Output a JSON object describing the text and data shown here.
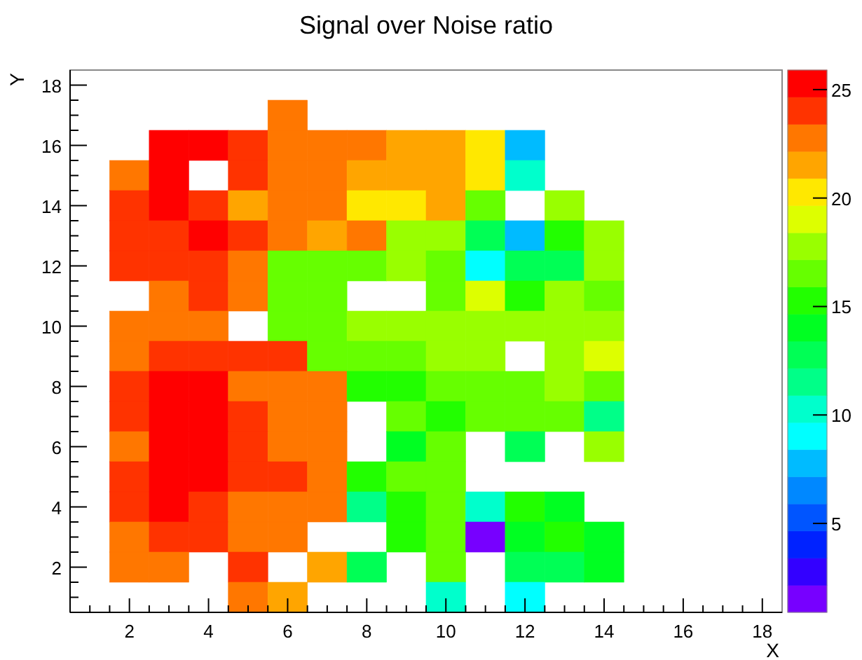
{
  "chart_data": {
    "type": "heatmap",
    "title": "Signal over Noise ratio",
    "xlabel": "X",
    "ylabel": "Y",
    "x": [
      2,
      3,
      4,
      5,
      6,
      7,
      8,
      9,
      10,
      11,
      12,
      13,
      14
    ],
    "y": [
      17,
      16,
      15,
      14,
      13,
      12,
      11,
      10,
      9,
      8,
      7,
      6,
      5,
      4,
      3,
      2,
      1
    ],
    "xlim": [
      0.5,
      18.5
    ],
    "ylim": [
      0.5,
      18.5
    ],
    "xticks": [
      {
        "value": 1,
        "label": null
      },
      {
        "value": 1.5,
        "label": null
      },
      2,
      {
        "value": 2.5,
        "label": null
      },
      {
        "value": 3,
        "label": null
      },
      {
        "value": 3.5,
        "label": null
      },
      4,
      {
        "value": 4.5,
        "label": null
      },
      {
        "value": 5,
        "label": null
      },
      {
        "value": 5.5,
        "label": null
      },
      6,
      {
        "value": 6.5,
        "label": null
      },
      {
        "value": 7,
        "label": null
      },
      {
        "value": 7.5,
        "label": null
      },
      8,
      {
        "value": 8.5,
        "label": null
      },
      {
        "value": 9,
        "label": null
      },
      {
        "value": 9.5,
        "label": null
      },
      10,
      {
        "value": 10.5,
        "label": null
      },
      {
        "value": 11,
        "label": null
      },
      {
        "value": 11.5,
        "label": null
      },
      12,
      {
        "value": 12.5,
        "label": null
      },
      {
        "value": 13,
        "label": null
      },
      {
        "value": 13.5,
        "label": null
      },
      14,
      {
        "value": 14.5,
        "label": null
      },
      {
        "value": 15,
        "label": null
      },
      {
        "value": 15.5,
        "label": null
      },
      16,
      {
        "value": 16.5,
        "label": null
      },
      {
        "value": 17,
        "label": null
      },
      {
        "value": 17.5,
        "label": null
      },
      18
    ],
    "yticks": [
      {
        "value": 1,
        "label": null
      },
      {
        "value": 1.5,
        "label": null
      },
      2,
      {
        "value": 2.5,
        "label": null
      },
      {
        "value": 3,
        "label": null
      },
      {
        "value": 3.5,
        "label": null
      },
      4,
      {
        "value": 4.5,
        "label": null
      },
      {
        "value": 5,
        "label": null
      },
      {
        "value": 5.5,
        "label": null
      },
      6,
      {
        "value": 6.5,
        "label": null
      },
      {
        "value": 7,
        "label": null
      },
      {
        "value": 7.5,
        "label": null
      },
      8,
      {
        "value": 8.5,
        "label": null
      },
      {
        "value": 9,
        "label": null
      },
      {
        "value": 9.5,
        "label": null
      },
      10,
      {
        "value": 10.5,
        "label": null
      },
      {
        "value": 11,
        "label": null
      },
      {
        "value": 11.5,
        "label": null
      },
      12,
      {
        "value": 12.5,
        "label": null
      },
      {
        "value": 13,
        "label": null
      },
      {
        "value": 13.5,
        "label": null
      },
      14,
      {
        "value": 14.5,
        "label": null
      },
      {
        "value": 15,
        "label": null
      },
      {
        "value": 15.5,
        "label": null
      },
      16,
      {
        "value": 16.5,
        "label": null
      },
      {
        "value": 17,
        "label": null
      },
      {
        "value": 17.5,
        "label": null
      },
      18
    ],
    "clim": [
      0.9,
      25.9
    ],
    "cticks": [
      5,
      10,
      15,
      20,
      25
    ],
    "cells": [
      [
        null,
        null,
        null,
        null,
        22.8,
        null,
        null,
        null,
        null,
        null,
        null,
        null,
        null
      ],
      [
        null,
        25.3,
        25.3,
        24.0,
        22.8,
        22.8,
        22.8,
        21.5,
        21.5,
        20.3,
        7.8,
        null,
        null
      ],
      [
        22.8,
        25.3,
        null,
        24.0,
        22.8,
        22.8,
        21.5,
        21.5,
        21.5,
        20.3,
        10.3,
        null,
        null
      ],
      [
        24.0,
        25.3,
        24.0,
        21.5,
        22.8,
        22.8,
        20.3,
        20.3,
        21.5,
        16.5,
        null,
        17.8,
        null
      ],
      [
        24.0,
        24.0,
        25.3,
        24.0,
        22.8,
        21.5,
        22.8,
        17.8,
        17.8,
        12.8,
        7.8,
        15.3,
        17.8
      ],
      [
        24.0,
        24.0,
        24.0,
        22.8,
        16.5,
        16.5,
        16.5,
        17.8,
        16.5,
        9.0,
        12.8,
        12.8,
        17.8
      ],
      [
        null,
        22.8,
        24.0,
        22.8,
        16.5,
        16.5,
        null,
        null,
        16.5,
        19.0,
        15.3,
        17.8,
        16.5
      ],
      [
        22.8,
        22.8,
        22.8,
        null,
        16.5,
        16.5,
        17.8,
        17.8,
        17.8,
        17.8,
        17.8,
        17.8,
        17.8
      ],
      [
        22.8,
        24.0,
        24.0,
        24.0,
        24.0,
        16.5,
        16.5,
        16.5,
        17.8,
        17.8,
        null,
        17.8,
        19.0
      ],
      [
        24.0,
        25.3,
        25.3,
        22.8,
        22.8,
        22.8,
        15.3,
        15.3,
        16.5,
        16.5,
        16.5,
        17.8,
        16.5
      ],
      [
        24.0,
        25.3,
        25.3,
        24.0,
        22.8,
        22.8,
        null,
        16.5,
        15.3,
        16.5,
        16.5,
        16.5,
        11.5
      ],
      [
        22.8,
        25.3,
        25.3,
        24.0,
        22.8,
        22.8,
        null,
        14.0,
        16.5,
        null,
        12.8,
        null,
        17.8
      ],
      [
        24.0,
        25.3,
        25.3,
        24.0,
        24.0,
        22.8,
        15.3,
        16.5,
        16.5,
        null,
        null,
        null,
        null
      ],
      [
        24.0,
        25.3,
        24.0,
        22.8,
        22.8,
        22.8,
        11.5,
        15.3,
        16.5,
        10.3,
        15.3,
        14.0,
        null
      ],
      [
        22.8,
        24.0,
        24.0,
        22.8,
        22.8,
        null,
        null,
        15.3,
        16.5,
        1.5,
        14.0,
        15.3,
        14.0
      ],
      [
        22.8,
        22.8,
        null,
        24.0,
        null,
        21.5,
        12.8,
        null,
        16.5,
        null,
        12.8,
        12.8,
        14.0
      ],
      [
        null,
        null,
        null,
        22.8,
        21.5,
        null,
        null,
        null,
        10.3,
        null,
        9.0,
        null,
        null
      ]
    ]
  }
}
